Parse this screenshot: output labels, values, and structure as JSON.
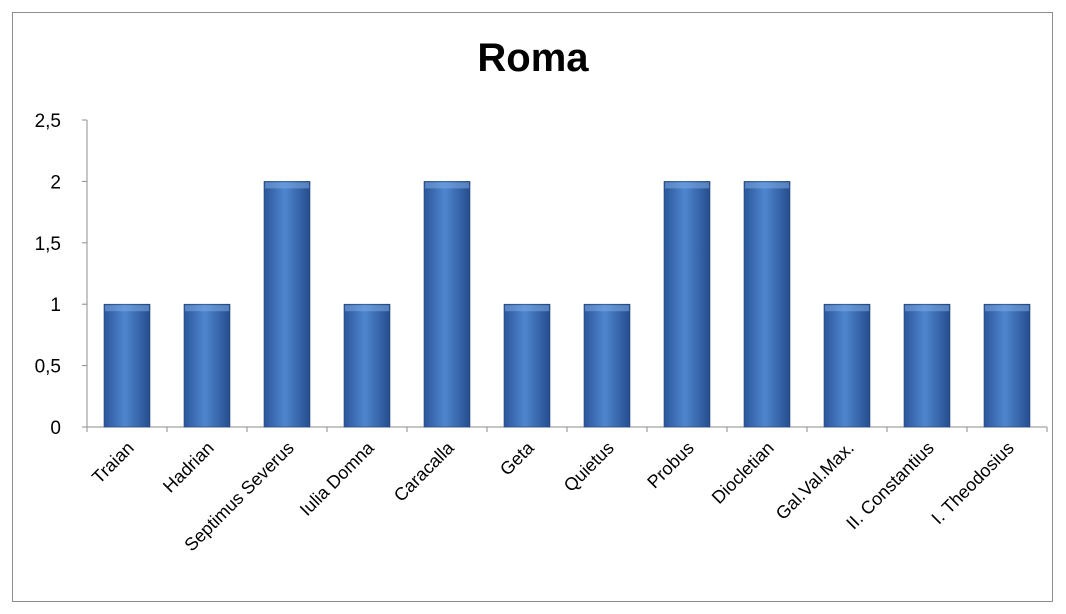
{
  "chart_data": {
    "type": "bar",
    "title": "Roma",
    "categories": [
      "Traian",
      "Hadrian",
      "Septimus Severus",
      "Iulia Domna",
      "Caracalla",
      "Geta",
      "Quietus",
      "Probus",
      "Diocletian",
      "Gal.Val.Max.",
      "II. Constantius",
      "I. Theodosius"
    ],
    "series": [
      {
        "values": [
          1,
          1,
          2,
          1,
          2,
          1,
          1,
          2,
          2,
          1,
          1,
          1
        ]
      }
    ],
    "y_ticks": [
      "0",
      "0,5",
      "1",
      "1,5",
      "2",
      "2,5"
    ],
    "ylim": [
      0,
      2.5
    ],
    "xlabel": "",
    "ylabel": "",
    "grid": false,
    "legend": "none",
    "bar_color": "#3a6fb5"
  }
}
